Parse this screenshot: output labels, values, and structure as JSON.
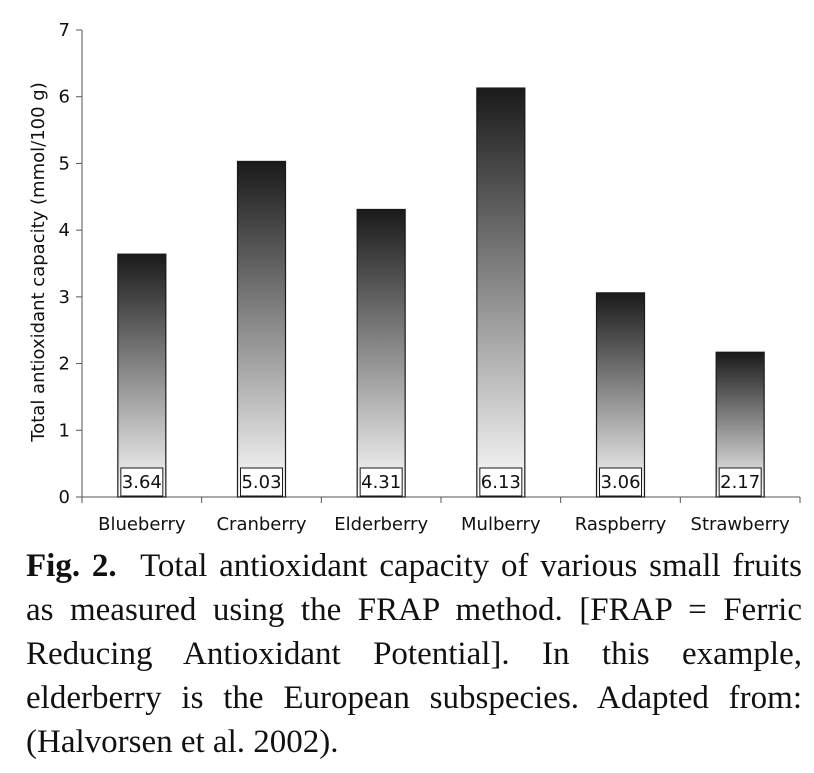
{
  "chart_data": {
    "type": "bar",
    "categories": [
      "Blueberry",
      "Cranberry",
      "Elderberry",
      "Mulberry",
      "Raspberry",
      "Strawberry"
    ],
    "values": [
      3.64,
      5.03,
      4.31,
      6.13,
      3.06,
      2.17
    ],
    "value_labels": [
      "3.64",
      "5.03",
      "4.31",
      "6.13",
      "3.06",
      "2.17"
    ],
    "xlabel": "",
    "ylabel": "Total antioxidant capacity (mmol/100 g)",
    "ylim": [
      0,
      7
    ],
    "yticks": [
      "0",
      "1",
      "2",
      "3",
      "4",
      "5",
      "6",
      "7"
    ],
    "grid": false,
    "bar_gradient": {
      "top": "#1a1a1a",
      "bottom": "#ffffff"
    }
  },
  "caption": {
    "label": "Fig. 2.",
    "text": "Total antioxidant capacity of various small fruits as measured using the FRAP method. [FRAP = Ferric Reducing Antioxidant Potential]. In this example, elderberry is the European subspecies. Adapted from: (Halvorsen et al. 2002)."
  }
}
